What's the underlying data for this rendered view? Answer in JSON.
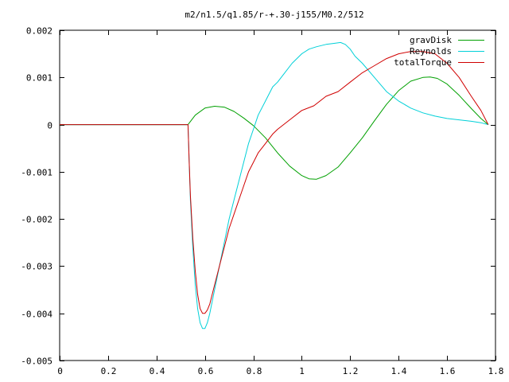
{
  "chart_data": {
    "type": "line",
    "title": "m2/n1.5/q1.85/r-+.30-j155/M0.2/512",
    "xlabel": "",
    "ylabel": "",
    "xlim": [
      0,
      1.8
    ],
    "ylim": [
      -0.005,
      0.002
    ],
    "grid": false,
    "legend_position": "top-right",
    "xticks": [
      0,
      0.2,
      0.4,
      0.6,
      0.8,
      1,
      1.2,
      1.4,
      1.6,
      1.8
    ],
    "xtick_labels": [
      "0",
      "0.2",
      "0.4",
      "0.6",
      "0.8",
      "1",
      "1.2",
      "1.4",
      "1.6",
      "1.8"
    ],
    "yticks": [
      -0.005,
      -0.004,
      -0.003,
      -0.002,
      -0.001,
      0,
      0.001,
      0.002
    ],
    "ytick_labels": [
      "-0.005",
      "-0.004",
      "-0.003",
      "-0.002",
      "-0.001",
      "0",
      "0.001",
      "0.002"
    ],
    "series": [
      {
        "name": "gravDisk",
        "color": "#00a000",
        "x": [
          0,
          0.53,
          0.56,
          0.6,
          0.64,
          0.68,
          0.72,
          0.76,
          0.8,
          0.85,
          0.9,
          0.95,
          1.0,
          1.03,
          1.06,
          1.1,
          1.15,
          1.2,
          1.25,
          1.3,
          1.35,
          1.4,
          1.45,
          1.5,
          1.53,
          1.56,
          1.6,
          1.65,
          1.7,
          1.74,
          1.77
        ],
        "y": [
          0,
          0,
          0.0002,
          0.00035,
          0.00039,
          0.00037,
          0.00028,
          0.00014,
          -2e-05,
          -0.00028,
          -0.0006,
          -0.00088,
          -0.00108,
          -0.00115,
          -0.00116,
          -0.00108,
          -0.0009,
          -0.0006,
          -0.00028,
          8e-05,
          0.00043,
          0.00072,
          0.00092,
          0.001,
          0.00101,
          0.00098,
          0.00086,
          0.00062,
          0.00034,
          0.00013,
          0
        ]
      },
      {
        "name": "Reynolds",
        "color": "#00d0d8",
        "x": [
          0,
          0.53,
          0.535,
          0.54,
          0.55,
          0.56,
          0.57,
          0.58,
          0.59,
          0.6,
          0.61,
          0.62,
          0.64,
          0.66,
          0.68,
          0.7,
          0.72,
          0.74,
          0.76,
          0.78,
          0.8,
          0.82,
          0.85,
          0.88,
          0.9,
          0.93,
          0.96,
          1.0,
          1.03,
          1.06,
          1.1,
          1.13,
          1.16,
          1.18,
          1.2,
          1.22,
          1.25,
          1.3,
          1.35,
          1.4,
          1.45,
          1.5,
          1.55,
          1.6,
          1.65,
          1.7,
          1.74,
          1.77
        ],
        "y": [
          0,
          0,
          -0.0008,
          -0.0016,
          -0.0026,
          -0.0034,
          -0.0039,
          -0.0042,
          -0.00432,
          -0.00432,
          -0.0042,
          -0.004,
          -0.0035,
          -0.003,
          -0.0025,
          -0.002,
          -0.0016,
          -0.0012,
          -0.0008,
          -0.0004,
          -0.0001,
          0.0002,
          0.0005,
          0.0008,
          0.0009,
          0.0011,
          0.0013,
          0.0015,
          0.0016,
          0.00165,
          0.0017,
          0.00172,
          0.00174,
          0.0017,
          0.0016,
          0.00145,
          0.0013,
          0.001,
          0.0007,
          0.0005,
          0.00035,
          0.00025,
          0.00018,
          0.00013,
          0.0001,
          7e-05,
          4e-05,
          0
        ]
      },
      {
        "name": "totalTorque",
        "color": "#d00000",
        "x": [
          0,
          0.53,
          0.535,
          0.54,
          0.55,
          0.56,
          0.57,
          0.58,
          0.59,
          0.6,
          0.61,
          0.62,
          0.64,
          0.66,
          0.68,
          0.7,
          0.72,
          0.74,
          0.76,
          0.78,
          0.8,
          0.82,
          0.85,
          0.88,
          0.9,
          0.95,
          1.0,
          1.05,
          1.1,
          1.15,
          1.2,
          1.25,
          1.3,
          1.35,
          1.4,
          1.45,
          1.5,
          1.55,
          1.6,
          1.65,
          1.7,
          1.74,
          1.77
        ],
        "y": [
          0,
          0,
          -0.0008,
          -0.0015,
          -0.0024,
          -0.0031,
          -0.0036,
          -0.0039,
          -0.004,
          -0.004,
          -0.00393,
          -0.0038,
          -0.0034,
          -0.003,
          -0.0026,
          -0.0022,
          -0.0019,
          -0.0016,
          -0.0013,
          -0.001,
          -0.0008,
          -0.0006,
          -0.0004,
          -0.0002,
          -0.0001,
          0.0001,
          0.0003,
          0.0004,
          0.0006,
          0.0007,
          0.0009,
          0.0011,
          0.00125,
          0.0014,
          0.0015,
          0.00155,
          0.00155,
          0.0015,
          0.0013,
          0.001,
          0.0006,
          0.0003,
          0
        ]
      }
    ]
  }
}
